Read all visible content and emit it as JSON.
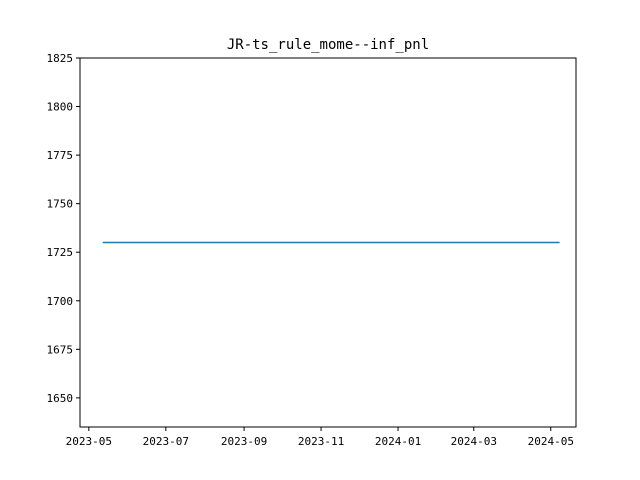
{
  "chart_data": {
    "type": "line",
    "title": "JR-ts_rule_mome--inf_pnl",
    "xlabel": "",
    "ylabel": "",
    "x_axis_type": "date",
    "xlim": [
      "2023-04-24",
      "2024-05-21"
    ],
    "ylim": [
      1635,
      1825
    ],
    "x_ticks": [
      "2023-05-01",
      "2023-07-01",
      "2023-09-01",
      "2023-11-01",
      "2024-01-01",
      "2024-03-01",
      "2024-05-01"
    ],
    "x_tick_labels": [
      "2023-05",
      "2023-07",
      "2023-09",
      "2023-11",
      "2024-01",
      "2024-03",
      "2024-05"
    ],
    "y_ticks": [
      1650,
      1675,
      1700,
      1725,
      1750,
      1775,
      1800,
      1825
    ],
    "y_tick_labels": [
      "1650",
      "1675",
      "1700",
      "1725",
      "1750",
      "1775",
      "1800",
      "1825"
    ],
    "grid": false,
    "legend": "none",
    "series": [
      {
        "color": "#1f77b4",
        "x": [
          "2023-05-12",
          "2024-05-08"
        ],
        "y": [
          1730,
          1730
        ]
      }
    ]
  }
}
